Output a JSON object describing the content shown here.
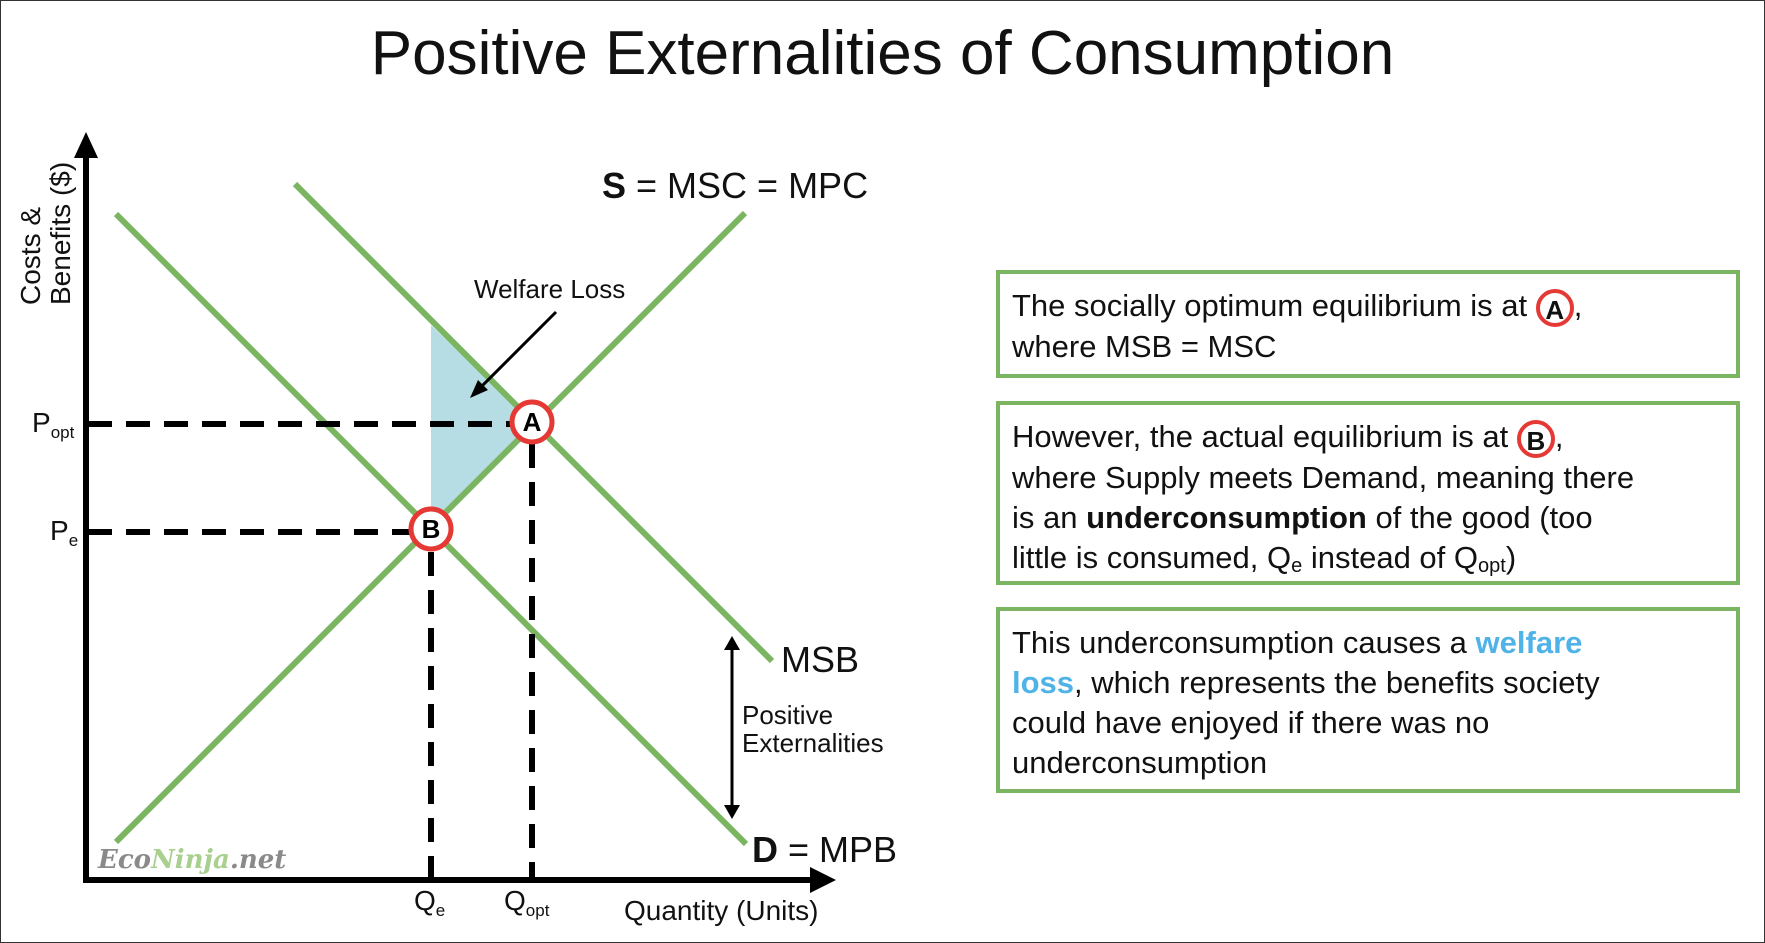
{
  "title": "Positive Externalities of Consumption",
  "diagram": {
    "y_axis_label_line1": "Costs &",
    "y_axis_label_line2": "Benefits ($)",
    "x_axis_label": "Quantity (Units)",
    "supply_label_bold": "S",
    "supply_label_rest": " = MSC = MPC",
    "msb_label": "MSB",
    "demand_label_bold": "D",
    "demand_label_rest": " = MPB",
    "welfare_loss_label": "Welfare Loss",
    "positive_ext_line1": "Positive",
    "positive_ext_line2": "Externalities",
    "point_a": "A",
    "point_b": "B",
    "p_opt_main": "P",
    "p_opt_sub": "opt",
    "p_e_main": "P",
    "p_e_sub": "e",
    "q_e_main": "Q",
    "q_e_sub": "e",
    "q_opt_main": "Q",
    "q_opt_sub": "opt",
    "watermark_part1": "Eco",
    "watermark_part2": "Ninja",
    "watermark_part3": ".net"
  },
  "box1": {
    "text_before": "The socially optimum equilibrium is at ",
    "circle": "A",
    "text_after": ",",
    "line2": "where MSB = MSC"
  },
  "box2": {
    "text_before": "However, the actual equilibrium is at ",
    "circle": "B",
    "text_after": ",",
    "line2": "where Supply meets Demand, meaning there",
    "line3_pre": "is an ",
    "line3_bold": "underconsumption",
    "line3_post": " of the good (too",
    "line4_pre": "little is consumed, Q",
    "line4_sub1": "e",
    "line4_mid": " instead of Q",
    "line4_sub2": "opt",
    "line4_post": ")"
  },
  "box3": {
    "line1_pre": "This underconsumption causes a ",
    "line1_blue": "welfare",
    "line2_blue": "loss",
    "line2_post": ", which represents the benefits society",
    "line3": "could have enjoyed if there was no",
    "line4": "underconsumption"
  },
  "colors": {
    "curve_green": "#7cb562",
    "welfare_fill": "#b6dde3",
    "point_red": "#e53935",
    "box_border": "#7cb562",
    "highlight_blue": "#4fb3e8",
    "axis": "#000000"
  }
}
